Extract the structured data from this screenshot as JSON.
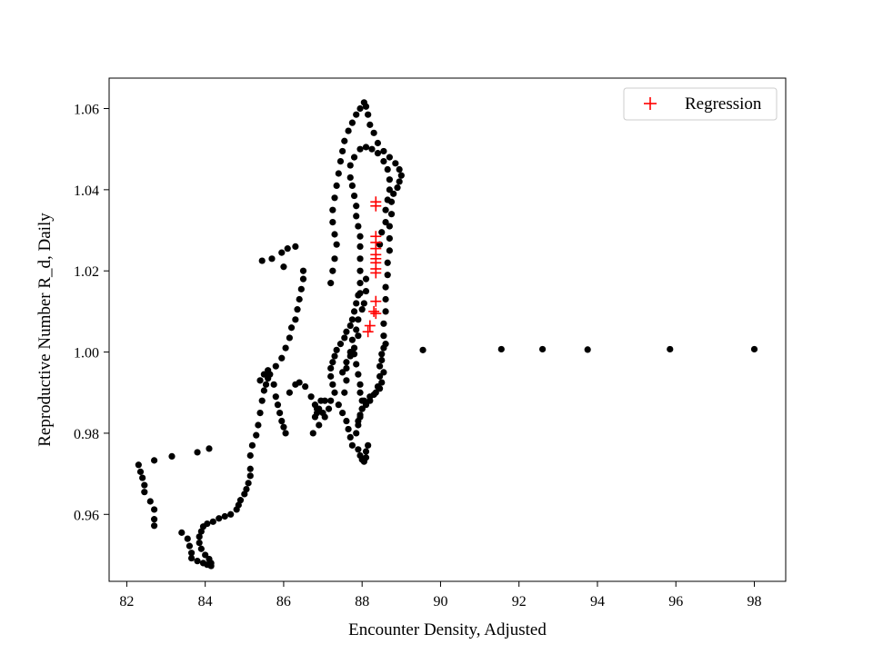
{
  "chart_data": {
    "type": "scatter",
    "title": "",
    "xlabel": "Encounter Density, Adjusted",
    "ylabel": "Reproductive Number R_d, Daily",
    "xlim": [
      81.55,
      98.8
    ],
    "ylim": [
      0.9435,
      1.0675
    ],
    "xticks": [
      82,
      84,
      86,
      88,
      90,
      92,
      94,
      96,
      98
    ],
    "yticks": [
      0.96,
      0.98,
      1.0,
      1.02,
      1.04,
      1.06
    ],
    "xtick_labels": [
      "82",
      "84",
      "86",
      "88",
      "90",
      "92",
      "94",
      "96",
      "98"
    ],
    "ytick_labels": [
      "0.96",
      "0.98",
      "1.00",
      "1.02",
      "1.04",
      "1.06"
    ],
    "legend_position": "top-right",
    "grid": false,
    "series": [
      {
        "name": "",
        "marker": "circle",
        "color": "#000000",
        "points": [
          [
            82.3,
            0.9722
          ],
          [
            82.35,
            0.9705
          ],
          [
            82.4,
            0.969
          ],
          [
            82.45,
            0.9672
          ],
          [
            82.45,
            0.9655
          ],
          [
            82.7,
            0.9733
          ],
          [
            83.15,
            0.9743
          ],
          [
            83.8,
            0.9753
          ],
          [
            84.1,
            0.9762
          ],
          [
            82.6,
            0.9632
          ],
          [
            82.7,
            0.9612
          ],
          [
            82.7,
            0.9588
          ],
          [
            82.7,
            0.9572
          ],
          [
            83.4,
            0.9555
          ],
          [
            83.55,
            0.954
          ],
          [
            83.6,
            0.9522
          ],
          [
            83.65,
            0.9505
          ],
          [
            83.65,
            0.9492
          ],
          [
            83.8,
            0.9485
          ],
          [
            83.95,
            0.948
          ],
          [
            84.05,
            0.9476
          ],
          [
            84.15,
            0.9473
          ],
          [
            84.15,
            0.948
          ],
          [
            84.1,
            0.949
          ],
          [
            84.0,
            0.95
          ],
          [
            83.9,
            0.9515
          ],
          [
            83.85,
            0.953
          ],
          [
            83.85,
            0.9545
          ],
          [
            83.9,
            0.9558
          ],
          [
            83.95,
            0.957
          ],
          [
            84.05,
            0.9577
          ],
          [
            84.2,
            0.9582
          ],
          [
            84.35,
            0.959
          ],
          [
            84.5,
            0.9595
          ],
          [
            84.65,
            0.96
          ],
          [
            84.8,
            0.9612
          ],
          [
            84.85,
            0.9623
          ],
          [
            84.9,
            0.9635
          ],
          [
            85.0,
            0.965
          ],
          [
            85.05,
            0.9662
          ],
          [
            85.1,
            0.9677
          ],
          [
            85.15,
            0.9695
          ],
          [
            85.15,
            0.9712
          ],
          [
            85.15,
            0.9745
          ],
          [
            85.2,
            0.977
          ],
          [
            85.3,
            0.9795
          ],
          [
            85.35,
            0.982
          ],
          [
            85.4,
            0.985
          ],
          [
            85.45,
            0.988
          ],
          [
            85.5,
            0.9905
          ],
          [
            85.55,
            0.992
          ],
          [
            85.6,
            0.9935
          ],
          [
            85.65,
            0.9945
          ],
          [
            85.75,
            0.992
          ],
          [
            85.8,
            0.989
          ],
          [
            85.85,
            0.987
          ],
          [
            85.9,
            0.985
          ],
          [
            85.95,
            0.983
          ],
          [
            86.0,
            0.9815
          ],
          [
            86.05,
            0.98
          ],
          [
            86.15,
            0.99
          ],
          [
            86.3,
            0.992
          ],
          [
            86.4,
            0.9925
          ],
          [
            86.55,
            0.9915
          ],
          [
            86.7,
            0.989
          ],
          [
            86.8,
            0.987
          ],
          [
            86.85,
            0.985
          ],
          [
            85.4,
            0.993
          ],
          [
            85.5,
            0.9945
          ],
          [
            85.6,
            0.9955
          ],
          [
            85.8,
            0.9965
          ],
          [
            85.95,
            0.9985
          ],
          [
            86.05,
            1.001
          ],
          [
            86.15,
            1.0035
          ],
          [
            86.2,
            1.006
          ],
          [
            86.3,
            1.008
          ],
          [
            86.35,
            1.0105
          ],
          [
            86.4,
            1.013
          ],
          [
            86.45,
            1.0155
          ],
          [
            86.5,
            1.018
          ],
          [
            86.5,
            1.02
          ],
          [
            85.45,
            1.0225
          ],
          [
            85.7,
            1.023
          ],
          [
            85.95,
            1.0245
          ],
          [
            86.0,
            1.021
          ],
          [
            86.1,
            1.0255
          ],
          [
            86.3,
            1.026
          ],
          [
            86.85,
            0.986
          ],
          [
            86.95,
            0.988
          ],
          [
            87.05,
            0.988
          ],
          [
            86.75,
            0.98
          ],
          [
            86.9,
            0.982
          ],
          [
            87.05,
            0.984
          ],
          [
            87.15,
            0.986
          ],
          [
            86.8,
            0.984
          ],
          [
            86.9,
            0.986
          ],
          [
            87.0,
            0.985
          ],
          [
            87.2,
            0.988
          ],
          [
            87.3,
            0.99
          ],
          [
            87.25,
            0.992
          ],
          [
            87.2,
            0.994
          ],
          [
            87.2,
            0.996
          ],
          [
            87.25,
            0.9975
          ],
          [
            87.3,
            0.999
          ],
          [
            87.35,
            1.0005
          ],
          [
            87.45,
            1.002
          ],
          [
            87.55,
            1.0035
          ],
          [
            87.6,
            1.005
          ],
          [
            87.7,
            1.0065
          ],
          [
            87.75,
            1.008
          ],
          [
            87.8,
            1.01
          ],
          [
            87.85,
            1.012
          ],
          [
            87.9,
            1.014
          ],
          [
            87.4,
            0.987
          ],
          [
            87.5,
            0.985
          ],
          [
            87.6,
            0.983
          ],
          [
            87.65,
            0.981
          ],
          [
            87.7,
            0.979
          ],
          [
            87.75,
            0.977
          ],
          [
            87.55,
            0.99
          ],
          [
            87.6,
            0.993
          ],
          [
            87.6,
            0.996
          ],
          [
            87.7,
            0.999
          ],
          [
            87.8,
            1.001
          ],
          [
            87.9,
            1.004
          ],
          [
            87.9,
            0.976
          ],
          [
            87.95,
            0.9745
          ],
          [
            88.0,
            0.9735
          ],
          [
            88.05,
            0.973
          ],
          [
            88.1,
            0.974
          ],
          [
            88.1,
            0.9755
          ],
          [
            88.15,
            0.977
          ],
          [
            87.85,
            0.98
          ],
          [
            87.9,
            0.982
          ],
          [
            87.95,
            0.984
          ],
          [
            88.0,
            0.986
          ],
          [
            88.0,
            0.988
          ],
          [
            87.95,
            0.99
          ],
          [
            87.95,
            0.992
          ],
          [
            87.9,
            0.9945
          ],
          [
            87.85,
            0.997
          ],
          [
            87.8,
            0.9995
          ],
          [
            88.05,
            0.988
          ],
          [
            88.2,
            0.989
          ],
          [
            88.35,
            0.99
          ],
          [
            88.45,
            0.991
          ],
          [
            88.5,
            0.9925
          ],
          [
            88.55,
            0.995
          ],
          [
            88.5,
            0.998
          ],
          [
            88.55,
            1.001
          ],
          [
            88.55,
            1.004
          ],
          [
            88.55,
            1.007
          ],
          [
            88.6,
            1.01
          ],
          [
            88.6,
            1.013
          ],
          [
            88.6,
            1.016
          ],
          [
            88.65,
            1.019
          ],
          [
            88.65,
            1.022
          ],
          [
            88.7,
            1.025
          ],
          [
            88.7,
            1.028
          ],
          [
            88.7,
            1.031
          ],
          [
            88.75,
            1.034
          ],
          [
            88.75,
            1.037
          ],
          [
            88.8,
            1.039
          ],
          [
            88.9,
            1.0405
          ],
          [
            88.95,
            1.042
          ],
          [
            89.0,
            1.0435
          ],
          [
            88.95,
            1.045
          ],
          [
            88.85,
            1.0465
          ],
          [
            88.7,
            1.048
          ],
          [
            88.55,
            1.0495
          ],
          [
            88.4,
            1.0515
          ],
          [
            88.3,
            1.054
          ],
          [
            88.2,
            1.056
          ],
          [
            88.15,
            1.0585
          ],
          [
            88.1,
            1.0605
          ],
          [
            88.05,
            1.0615
          ],
          [
            87.95,
            1.06
          ],
          [
            87.85,
            1.0585
          ],
          [
            87.75,
            1.0565
          ],
          [
            87.65,
            1.0545
          ],
          [
            87.55,
            1.052
          ],
          [
            87.5,
            1.0495
          ],
          [
            87.45,
            1.047
          ],
          [
            87.4,
            1.044
          ],
          [
            87.35,
            1.041
          ],
          [
            87.3,
            1.038
          ],
          [
            87.25,
            1.035
          ],
          [
            87.25,
            1.032
          ],
          [
            87.3,
            1.029
          ],
          [
            87.35,
            1.0265
          ],
          [
            87.3,
            1.023
          ],
          [
            87.25,
            1.02
          ],
          [
            87.2,
            1.017
          ],
          [
            87.95,
            1.05
          ],
          [
            88.1,
            1.0505
          ],
          [
            88.25,
            1.05
          ],
          [
            88.4,
            1.049
          ],
          [
            88.55,
            1.047
          ],
          [
            88.65,
            1.045
          ],
          [
            88.7,
            1.0425
          ],
          [
            88.7,
            1.04
          ],
          [
            88.65,
            1.0375
          ],
          [
            88.6,
            1.035
          ],
          [
            88.6,
            1.032
          ],
          [
            88.5,
            1.0295
          ],
          [
            88.45,
            1.0265
          ],
          [
            87.8,
            1.048
          ],
          [
            87.7,
            1.046
          ],
          [
            87.7,
            1.043
          ],
          [
            87.75,
            1.041
          ],
          [
            87.8,
            1.0385
          ],
          [
            87.85,
            1.036
          ],
          [
            87.85,
            1.0335
          ],
          [
            87.9,
            1.031
          ],
          [
            87.95,
            1.0285
          ],
          [
            87.95,
            1.026
          ],
          [
            87.95,
            1.023
          ],
          [
            87.95,
            1.02
          ],
          [
            87.95,
            1.017
          ],
          [
            87.95,
            1.0145
          ],
          [
            88.6,
            1.002
          ],
          [
            88.5,
            0.9995
          ],
          [
            88.45,
            0.9965
          ],
          [
            88.45,
            0.994
          ],
          [
            88.4,
            0.9915
          ],
          [
            88.3,
            0.9895
          ],
          [
            88.2,
            0.988
          ],
          [
            88.1,
            0.987
          ],
          [
            88.0,
            0.986
          ],
          [
            87.95,
            0.9845
          ],
          [
            87.9,
            0.983
          ],
          [
            87.5,
            0.995
          ],
          [
            87.6,
            0.9975
          ],
          [
            87.7,
            1.0
          ],
          [
            87.75,
            1.003
          ],
          [
            87.85,
            1.0055
          ],
          [
            87.9,
            1.008
          ],
          [
            88.0,
            1.0105
          ],
          [
            88.05,
            1.012
          ],
          [
            88.1,
            1.015
          ],
          [
            88.1,
            1.018
          ],
          [
            89.55,
            1.0005
          ],
          [
            91.55,
            1.0007
          ],
          [
            92.6,
            1.0007
          ],
          [
            93.75,
            1.0006
          ],
          [
            95.85,
            1.0007
          ],
          [
            98.0,
            1.0007
          ]
        ]
      },
      {
        "name": "Regression",
        "marker": "plus",
        "color": "#ff0000",
        "points": [
          [
            88.35,
            1.037
          ],
          [
            88.35,
            1.036
          ],
          [
            88.35,
            1.0285
          ],
          [
            88.35,
            1.027
          ],
          [
            88.35,
            1.0255
          ],
          [
            88.35,
            1.024
          ],
          [
            88.35,
            1.023
          ],
          [
            88.35,
            1.022
          ],
          [
            88.35,
            1.0205
          ],
          [
            88.35,
            1.0195
          ],
          [
            88.35,
            1.0125
          ],
          [
            88.3,
            1.01
          ],
          [
            88.35,
            1.0095
          ],
          [
            88.2,
            1.0065
          ],
          [
            88.15,
            1.005
          ]
        ]
      }
    ]
  }
}
